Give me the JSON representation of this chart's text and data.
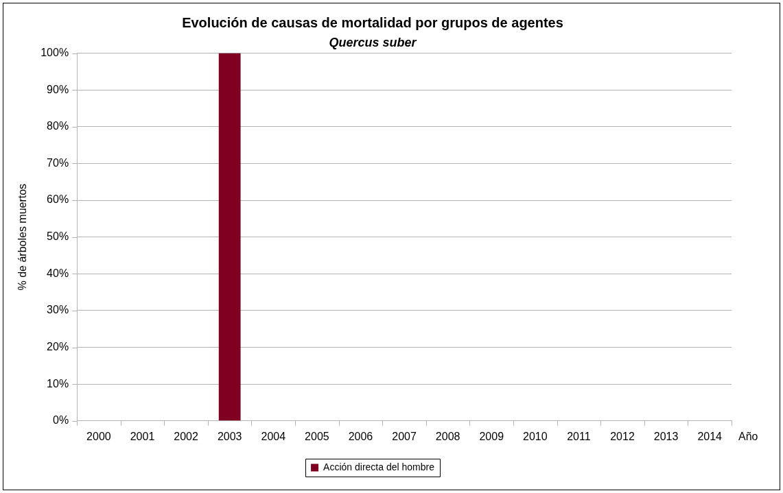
{
  "chart_data": {
    "type": "bar",
    "title": "Evolución de causas de mortalidad por grupos de agentes",
    "subtitle": "Quercus suber",
    "xlabel": "Año",
    "ylabel": "% de árboles muertos",
    "categories": [
      "2000",
      "2001",
      "2002",
      "2003",
      "2004",
      "2005",
      "2006",
      "2007",
      "2008",
      "2009",
      "2010",
      "2011",
      "2012",
      "2013",
      "2014"
    ],
    "series": [
      {
        "name": "Acción directa del hombre",
        "color": "#7f0021",
        "values": [
          0,
          0,
          0,
          100,
          0,
          0,
          0,
          0,
          0,
          0,
          0,
          0,
          0,
          0,
          0
        ]
      }
    ],
    "ylim": [
      0,
      100
    ],
    "yticks": [
      {
        "value": 0,
        "label": "0%"
      },
      {
        "value": 10,
        "label": "10%"
      },
      {
        "value": 20,
        "label": "20%"
      },
      {
        "value": 30,
        "label": "30%"
      },
      {
        "value": 40,
        "label": "40%"
      },
      {
        "value": 50,
        "label": "50%"
      },
      {
        "value": 60,
        "label": "60%"
      },
      {
        "value": 70,
        "label": "70%"
      },
      {
        "value": 80,
        "label": "80%"
      },
      {
        "value": 90,
        "label": "90%"
      },
      {
        "value": 100,
        "label": "100%"
      }
    ],
    "grid": "y",
    "legend": "bottom"
  }
}
